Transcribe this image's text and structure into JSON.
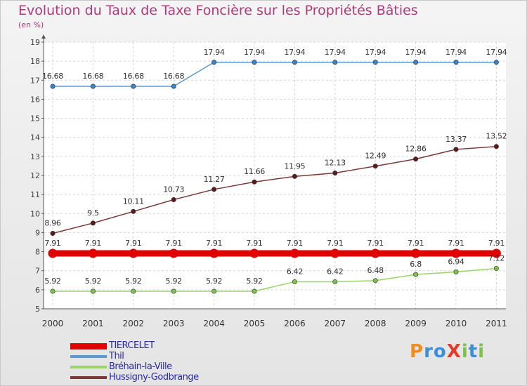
{
  "header": {
    "title": "Evolution du Taux de Taxe Foncière sur les Propriétés Bâties",
    "subtitle": "(en %)"
  },
  "chart_data": {
    "type": "line",
    "title": "Evolution du Taux de Taxe Foncière sur les Propriétés Bâties",
    "ylabel": "(en %)",
    "xlabel": "",
    "categories": [
      "2000",
      "2001",
      "2002",
      "2003",
      "2004",
      "2005",
      "2006",
      "2007",
      "2008",
      "2009",
      "2010",
      "2011"
    ],
    "ylim": [
      5,
      19
    ],
    "yticks": [
      "5",
      "6",
      "7",
      "8",
      "9",
      "10",
      "11",
      "12",
      "13",
      "14",
      "15",
      "16",
      "17",
      "18",
      "19"
    ],
    "grid": true,
    "legend_position": "bottom-left",
    "series": [
      {
        "name": "Thil",
        "color": "#5b9bd1",
        "marker": "#3b82c4",
        "values": [
          16.68,
          16.68,
          16.68,
          16.68,
          17.94,
          17.94,
          17.94,
          17.94,
          17.94,
          17.94,
          17.94,
          17.94
        ],
        "labels": [
          "16.68",
          "16.68",
          "16.68",
          "16.68",
          "17.94",
          "17.94",
          "17.94",
          "17.94",
          "17.94",
          "17.94",
          "17.94",
          "17.94"
        ]
      },
      {
        "name": "Hussigny-Godbrange",
        "color": "#7a3a3a",
        "marker": "#5c1a1a",
        "values": [
          8.96,
          9.5,
          10.11,
          10.73,
          11.27,
          11.66,
          11.95,
          12.13,
          12.49,
          12.86,
          13.37,
          13.52
        ],
        "labels": [
          "8.96",
          "9.5",
          "10.11",
          "10.73",
          "11.27",
          "11.66",
          "11.95",
          "12.13",
          "12.49",
          "12.86",
          "13.37",
          "13.52"
        ]
      },
      {
        "name": "TIERCELET",
        "color": "#e00000",
        "marker": "#e00000",
        "values": [
          7.91,
          7.91,
          7.91,
          7.91,
          7.91,
          7.91,
          7.91,
          7.91,
          7.91,
          7.91,
          7.91,
          7.91
        ],
        "labels": [
          "7.91",
          "7.91",
          "7.91",
          "7.91",
          "7.91",
          "7.91",
          "7.91",
          "7.91",
          "7.91",
          "7.91",
          "7.91",
          "7.91"
        ]
      },
      {
        "name": "Bréhain-la-Ville",
        "color": "#9bd46a",
        "marker": "#7cc24a",
        "values": [
          5.92,
          5.92,
          5.92,
          5.92,
          5.92,
          5.92,
          6.42,
          6.42,
          6.48,
          6.8,
          6.94,
          7.12
        ],
        "labels": [
          "5.92",
          "5.92",
          "5.92",
          "5.92",
          "5.92",
          "5.92",
          "6.42",
          "6.42",
          "6.48",
          "6.8",
          "6.94",
          "7.12"
        ]
      }
    ]
  },
  "legend": {
    "items": [
      {
        "label": "TIERCELET",
        "color": "#e00000"
      },
      {
        "label": "Thil",
        "color": "#5b9bd1"
      },
      {
        "label": "Bréhain-la-Ville",
        "color": "#9bd46a"
      },
      {
        "label": "Hussigny-Godbrange",
        "color": "#7a3a3a"
      }
    ]
  },
  "logo": {
    "text": "ProXiti",
    "letters": [
      {
        "ch": "P",
        "color": "#f28c1e"
      },
      {
        "ch": "r",
        "color": "#3b8fd8"
      },
      {
        "ch": "o",
        "color": "#3b8fd8"
      },
      {
        "ch": "X",
        "color": "#e43a2a"
      },
      {
        "ch": "i",
        "color": "#7cc24a"
      },
      {
        "ch": "t",
        "color": "#3b8fd8"
      },
      {
        "ch": "i",
        "color": "#7cc24a"
      }
    ]
  }
}
